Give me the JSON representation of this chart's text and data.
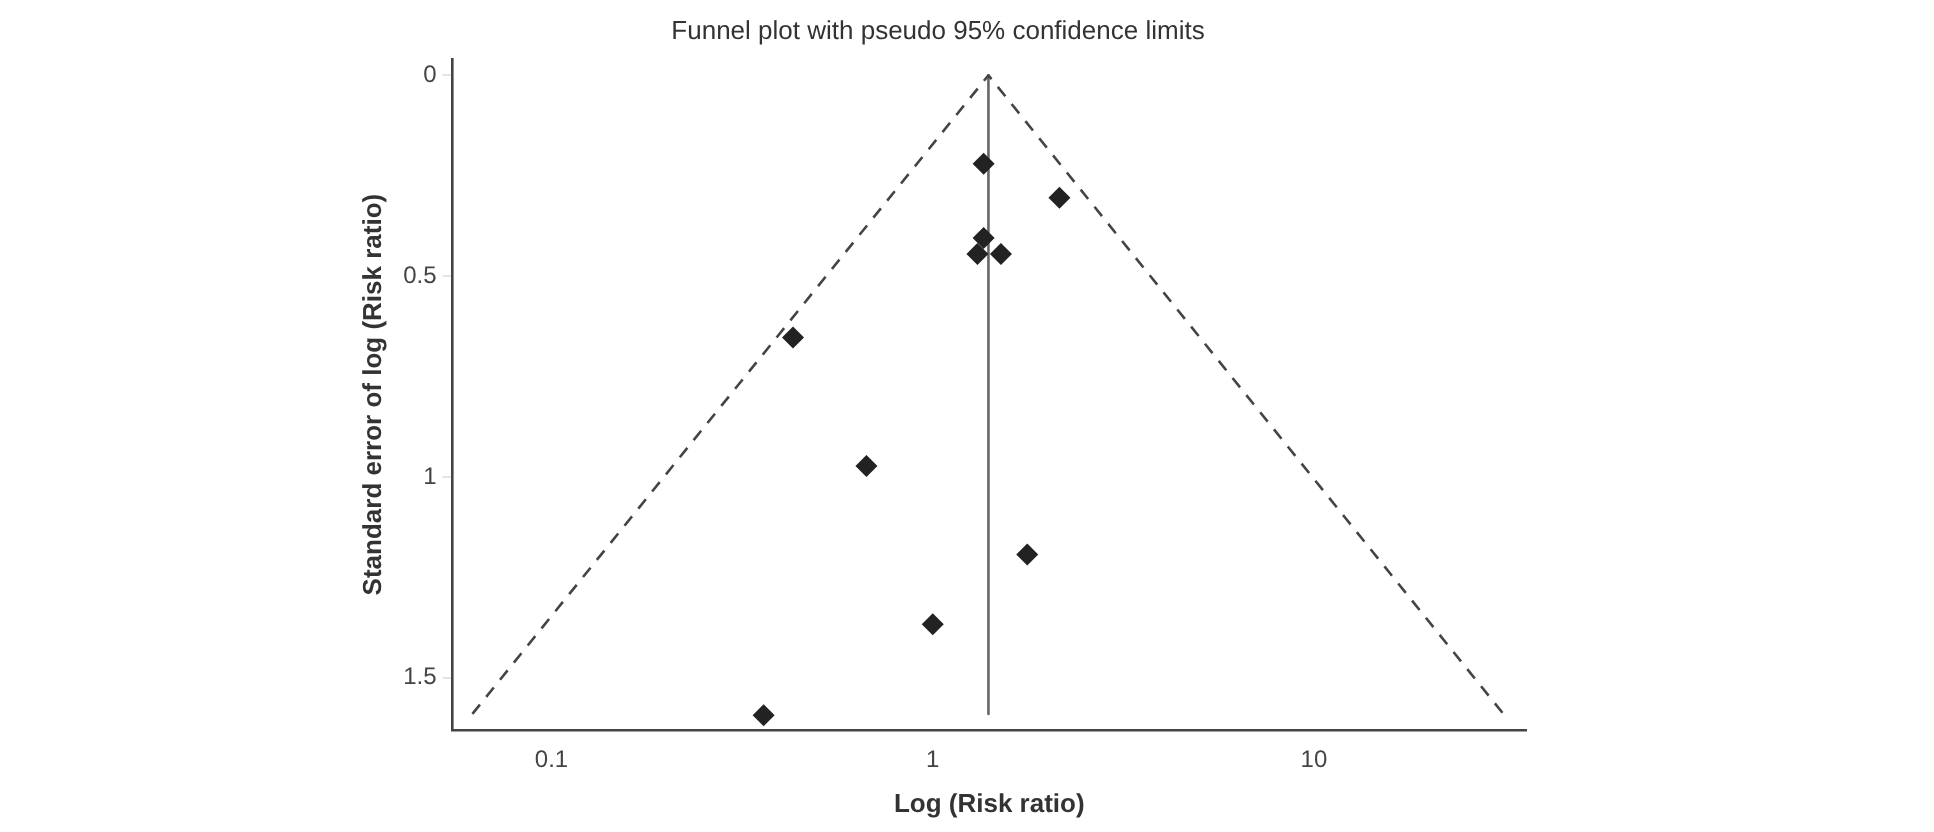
{
  "chart_data": {
    "type": "scatter",
    "title": "Funnel plot with pseudo 95% confidence limits",
    "xlabel": "Log (Risk ratio)",
    "ylabel": "Standard error of log (Risk ratio)",
    "log": "x",
    "grid": false,
    "legend": false,
    "xlim": [
      0.055,
      36
    ],
    "xticks": [
      0.1,
      1,
      10
    ],
    "ylim": [
      1.63,
      -0.04
    ],
    "yticks": [
      0,
      0.5,
      1,
      1.5
    ],
    "series": [
      {
        "marker": "diamond",
        "color": "#222222",
        "x": [
          1.36,
          2.15,
          1.36,
          1.31,
          1.51,
          0.43,
          0.67,
          1.77,
          1.0,
          0.36
        ],
        "values": [
          0.22,
          0.305,
          0.405,
          0.445,
          0.445,
          0.653,
          0.973,
          1.193,
          1.367,
          1.593
        ]
      },
      {
        "type": "line",
        "marker": "none",
        "line_style": "dashed",
        "color": "#444444",
        "x": [
          0.062,
          1.4,
          31.4
        ],
        "values": [
          1.59,
          0,
          1.59
        ]
      },
      {
        "type": "line",
        "marker": "none",
        "line_style": "solid",
        "color": "#666666",
        "x": [
          1.4,
          1.4
        ],
        "values": [
          0,
          1.59
        ]
      }
    ]
  }
}
